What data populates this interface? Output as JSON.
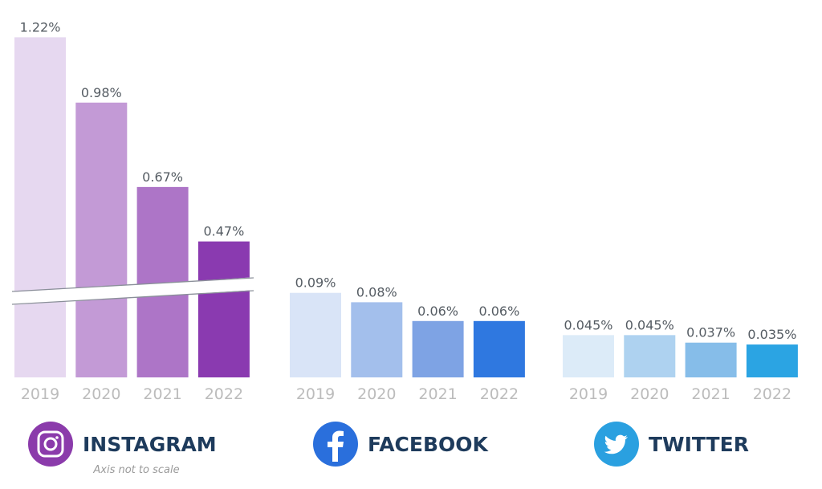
{
  "chart_data": {
    "type": "bar",
    "categories": [
      "2019",
      "2020",
      "2021",
      "2022"
    ],
    "panels": [
      {
        "name": "INSTAGRAM",
        "icon": "instagram-icon",
        "icon_color": "#8b3bab",
        "note": "Axis not to scale",
        "axis_break": true,
        "values": [
          1.22,
          0.98,
          0.67,
          0.47
        ],
        "labels": [
          "1.22%",
          "0.98%",
          "0.67%",
          "0.47%"
        ],
        "colors": [
          "#e6d8f0",
          "#c39ad6",
          "#ad75c7",
          "#8a3ab0"
        ]
      },
      {
        "name": "FACEBOOK",
        "icon": "facebook-icon",
        "icon_color": "#2a6fdc",
        "values": [
          0.09,
          0.08,
          0.06,
          0.06
        ],
        "labels": [
          "0.09%",
          "0.08%",
          "0.06%",
          "0.06%"
        ],
        "colors": [
          "#d9e4f7",
          "#a3bfec",
          "#7ea3e4",
          "#2f78e0"
        ]
      },
      {
        "name": "TWITTER",
        "icon": "twitter-icon",
        "icon_color": "#2aa0e0",
        "values": [
          0.045,
          0.045,
          0.037,
          0.035
        ],
        "labels": [
          "0.045%",
          "0.045%",
          "0.037%",
          "0.035%"
        ],
        "colors": [
          "#dcebf8",
          "#aed2f0",
          "#86bde9",
          "#2ba4e3"
        ]
      }
    ],
    "unit": "%",
    "grid": false
  }
}
